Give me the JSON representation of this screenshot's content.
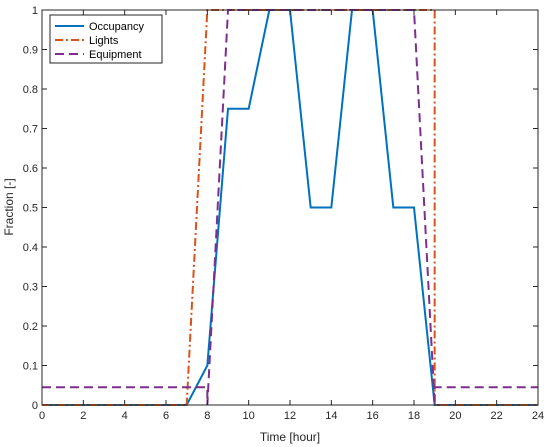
{
  "chart_data": {
    "type": "line",
    "xlabel": "Time [hour]",
    "ylabel": "Fraction [-]",
    "xlim": [
      0,
      24
    ],
    "ylim": [
      0,
      1
    ],
    "xticks": [
      0,
      2,
      4,
      6,
      8,
      10,
      12,
      14,
      16,
      18,
      20,
      22,
      24
    ],
    "yticks": [
      0,
      0.1,
      0.2,
      0.3,
      0.4,
      0.5,
      0.6,
      0.7,
      0.8,
      0.9,
      1
    ],
    "grid": false,
    "legend_position": "top-left",
    "series": [
      {
        "name": "Occupancy",
        "color": "#0072BD",
        "style": "solid",
        "x": [
          0,
          7,
          8,
          9,
          10,
          11,
          12,
          13,
          14,
          15,
          16,
          17,
          18,
          19,
          24
        ],
        "y": [
          0,
          0,
          0.1,
          0.75,
          0.75,
          1,
          1,
          0.5,
          0.5,
          1,
          1,
          0.5,
          0.5,
          0,
          0
        ]
      },
      {
        "name": "Lights",
        "color": "#D95319",
        "style": "dashdot",
        "x": [
          0,
          7,
          8,
          19,
          19,
          24
        ],
        "y": [
          0,
          0,
          1,
          1,
          0,
          0
        ]
      },
      {
        "name": "Equipment",
        "color": "#7E2F8E",
        "style": "dashed",
        "x": [
          0,
          8,
          8,
          9,
          18,
          19,
          19,
          24
        ],
        "y": [
          0.045,
          0.045,
          0,
          1,
          1,
          0,
          0.045,
          0.045
        ]
      }
    ]
  }
}
